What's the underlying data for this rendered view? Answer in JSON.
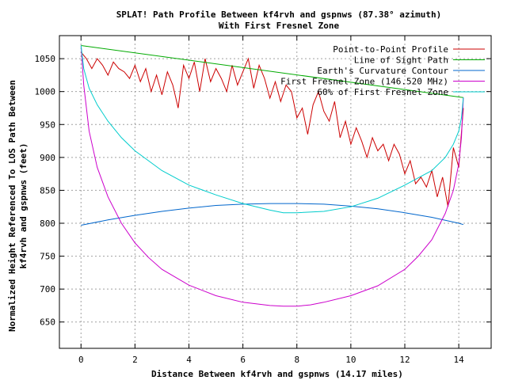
{
  "chart_data": {
    "type": "line",
    "title": "SPLAT! Path Profile Between kf4rvh and gspnws (87.38° azimuth)",
    "subtitle": "With First Fresnel Zone",
    "xlabel": "Distance Between kf4rvh and gspnws (14.17 miles)",
    "ylabel_line1": "Normalized Height Referenced To LOS Path Between",
    "ylabel_line2": "kf4rvh and gspnws (feet)",
    "xlim": [
      -0.8,
      15.2
    ],
    "ylim": [
      610,
      1085
    ],
    "x_ticks": [
      0,
      2,
      4,
      6,
      8,
      10,
      12,
      14
    ],
    "y_ticks": [
      650,
      700,
      750,
      800,
      850,
      900,
      950,
      1000,
      1050
    ],
    "x_tick_labels": [
      "0",
      "2",
      "4",
      "6",
      "8",
      "10",
      "12",
      "14"
    ],
    "y_tick_labels": [
      "650",
      "700",
      "750",
      "800",
      "850",
      "900",
      "950",
      "1000",
      "1050"
    ],
    "grid": true,
    "legend_position": "top-right",
    "series": [
      {
        "name": "Point-to-Point Profile",
        "color": "#cc0000",
        "x": [
          0,
          0.2,
          0.4,
          0.6,
          0.8,
          1.0,
          1.2,
          1.4,
          1.6,
          1.8,
          2.0,
          2.2,
          2.4,
          2.6,
          2.8,
          3.0,
          3.2,
          3.4,
          3.6,
          3.8,
          4.0,
          4.2,
          4.4,
          4.6,
          4.8,
          5.0,
          5.2,
          5.4,
          5.6,
          5.8,
          6.0,
          6.2,
          6.4,
          6.6,
          6.8,
          7.0,
          7.2,
          7.4,
          7.6,
          7.8,
          8.0,
          8.2,
          8.4,
          8.6,
          8.8,
          9.0,
          9.2,
          9.4,
          9.6,
          9.8,
          10.0,
          10.2,
          10.4,
          10.6,
          10.8,
          11.0,
          11.2,
          11.4,
          11.6,
          11.8,
          12.0,
          12.2,
          12.4,
          12.6,
          12.8,
          13.0,
          13.2,
          13.4,
          13.6,
          13.8,
          14.0,
          14.17
        ],
        "y": [
          1060,
          1050,
          1035,
          1050,
          1040,
          1025,
          1045,
          1035,
          1030,
          1020,
          1040,
          1015,
          1035,
          1000,
          1025,
          995,
          1030,
          1010,
          975,
          1040,
          1020,
          1045,
          1000,
          1050,
          1015,
          1035,
          1020,
          1000,
          1040,
          1010,
          1030,
          1050,
          1005,
          1040,
          1020,
          990,
          1015,
          985,
          1010,
          1000,
          960,
          975,
          935,
          980,
          1000,
          970,
          955,
          985,
          930,
          955,
          920,
          945,
          925,
          900,
          930,
          910,
          920,
          895,
          920,
          905,
          875,
          895,
          860,
          870,
          855,
          880,
          840,
          870,
          825,
          915,
          885,
          975
        ]
      },
      {
        "name": "Line of Sight Path",
        "color": "#00aa00",
        "x": [
          0,
          14.17
        ],
        "y": [
          1070,
          991
        ]
      },
      {
        "name": "Earth's Curvature Contour",
        "color": "#0066cc",
        "x": [
          0,
          1,
          2,
          3,
          4,
          5,
          6,
          7,
          7.5,
          8,
          9,
          10,
          11,
          12,
          13,
          14,
          14.17
        ],
        "y": [
          797,
          805,
          812,
          818,
          823,
          827,
          829,
          830,
          830,
          830,
          829,
          826,
          822,
          816,
          809,
          800,
          798
        ]
      },
      {
        "name": "First Fresnel Zone (146.520 MHz)",
        "color": "#cc00cc",
        "x": [
          0,
          0.1,
          0.3,
          0.6,
          1,
          1.5,
          2,
          2.5,
          3,
          4,
          5,
          6,
          7,
          7.5,
          8,
          8.5,
          9,
          10,
          11,
          12,
          12.5,
          13,
          13.5,
          13.8,
          14,
          14.1,
          14.17
        ],
        "y": [
          1070,
          1010,
          940,
          885,
          840,
          800,
          770,
          748,
          730,
          706,
          690,
          680,
          675,
          674,
          674,
          676,
          680,
          690,
          705,
          730,
          750,
          775,
          815,
          850,
          890,
          930,
          991
        ]
      },
      {
        "name": "60% of First Fresnel Zone",
        "color": "#00cccc",
        "x": [
          0,
          0.1,
          0.3,
          0.6,
          1,
          1.5,
          2,
          3,
          4,
          5,
          6,
          7,
          7.5,
          8,
          9,
          10,
          11,
          12,
          13,
          13.5,
          13.8,
          14,
          14.1,
          14.17
        ],
        "y": [
          1070,
          1035,
          1005,
          980,
          955,
          930,
          910,
          880,
          858,
          843,
          830,
          820,
          816,
          816,
          818,
          825,
          838,
          858,
          880,
          900,
          920,
          940,
          960,
          991
        ]
      }
    ]
  }
}
